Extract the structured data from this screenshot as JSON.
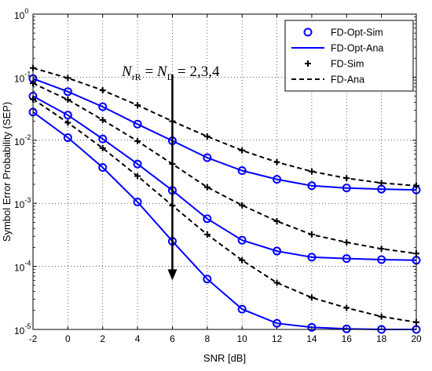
{
  "chart_data": {
    "type": "line",
    "title": "",
    "xlabel": "SNR [dB]",
    "ylabel": "Symbol Error Probability (SEP)",
    "xlim": [
      -2,
      20
    ],
    "ylim": [
      1e-05,
      1
    ],
    "yscale": "log",
    "grid": true,
    "legend_position": "top-right",
    "x_ticks": [
      -2,
      0,
      2,
      4,
      6,
      8,
      10,
      12,
      14,
      16,
      18,
      20
    ],
    "x_tick_labels": [
      "-2",
      "0",
      "2",
      "4",
      "6",
      "8",
      "10",
      "12",
      "14",
      "16",
      "18",
      "20"
    ],
    "y_ticks": [
      {
        "base": "10",
        "exp": "-5",
        "value": 1e-05
      },
      {
        "base": "10",
        "exp": "-4",
        "value": 0.0001
      },
      {
        "base": "10",
        "exp": "-3",
        "value": 0.001
      },
      {
        "base": "10",
        "exp": "-2",
        "value": 0.01
      },
      {
        "base": "10",
        "exp": "-1",
        "value": 0.1
      },
      {
        "base": "10",
        "exp": "0",
        "value": 1
      }
    ],
    "legend": [
      {
        "label": "FD-Opt-Sim",
        "style": "circle",
        "color": "#0000ff"
      },
      {
        "label": "FD-Opt-Ana",
        "style": "solid",
        "color": "#0000ff"
      },
      {
        "label": "FD-Sim",
        "style": "plus",
        "color": "#000000"
      },
      {
        "label": "FD-Ana",
        "style": "dashed",
        "color": "#000000"
      }
    ],
    "annotation": {
      "lhs": "N",
      "lhs_sub": "rR",
      "eq": " = ",
      "rhs": "N",
      "rhs_sub": "D",
      "values": " = 2,3,4",
      "arrow_x": 6,
      "arrow_from_y": 0.11,
      "arrow_to_y": 6e-05
    },
    "x": [
      -2,
      0,
      2,
      4,
      6,
      8,
      10,
      12,
      14,
      16,
      18,
      20
    ],
    "series": [
      {
        "group": "FD-Opt",
        "N": 2,
        "values": [
          0.095,
          0.059,
          0.034,
          0.018,
          0.0098,
          0.0053,
          0.0033,
          0.0024,
          0.0019,
          0.00175,
          0.00168,
          0.00163
        ]
      },
      {
        "group": "FD-Opt",
        "N": 3,
        "values": [
          0.05,
          0.025,
          0.0105,
          0.0042,
          0.0016,
          0.00057,
          0.00026,
          0.000175,
          0.00014,
          0.000133,
          0.000128,
          0.000125
        ]
      },
      {
        "group": "FD-Opt",
        "N": 4,
        "values": [
          0.028,
          0.011,
          0.0037,
          0.00105,
          0.00025,
          6.3e-05,
          2.1e-05,
          1.25e-05,
          1.08e-05,
          1.02e-05,
          1e-05,
          1e-05
        ]
      },
      {
        "group": "FD",
        "N": 2,
        "values": [
          0.14,
          0.097,
          0.062,
          0.036,
          0.02,
          0.0115,
          0.0069,
          0.0045,
          0.0032,
          0.0025,
          0.0021,
          0.0019
        ]
      },
      {
        "group": "FD",
        "N": 3,
        "values": [
          0.08,
          0.044,
          0.021,
          0.0097,
          0.0042,
          0.0018,
          0.00093,
          0.00052,
          0.00032,
          0.00024,
          0.00019,
          0.00016
        ]
      },
      {
        "group": "FD",
        "N": 4,
        "values": [
          0.045,
          0.019,
          0.0075,
          0.0027,
          0.00092,
          0.00032,
          0.000125,
          5.5e-05,
          3.2e-05,
          2.2e-05,
          1.6e-05,
          1.3e-05
        ]
      }
    ]
  }
}
